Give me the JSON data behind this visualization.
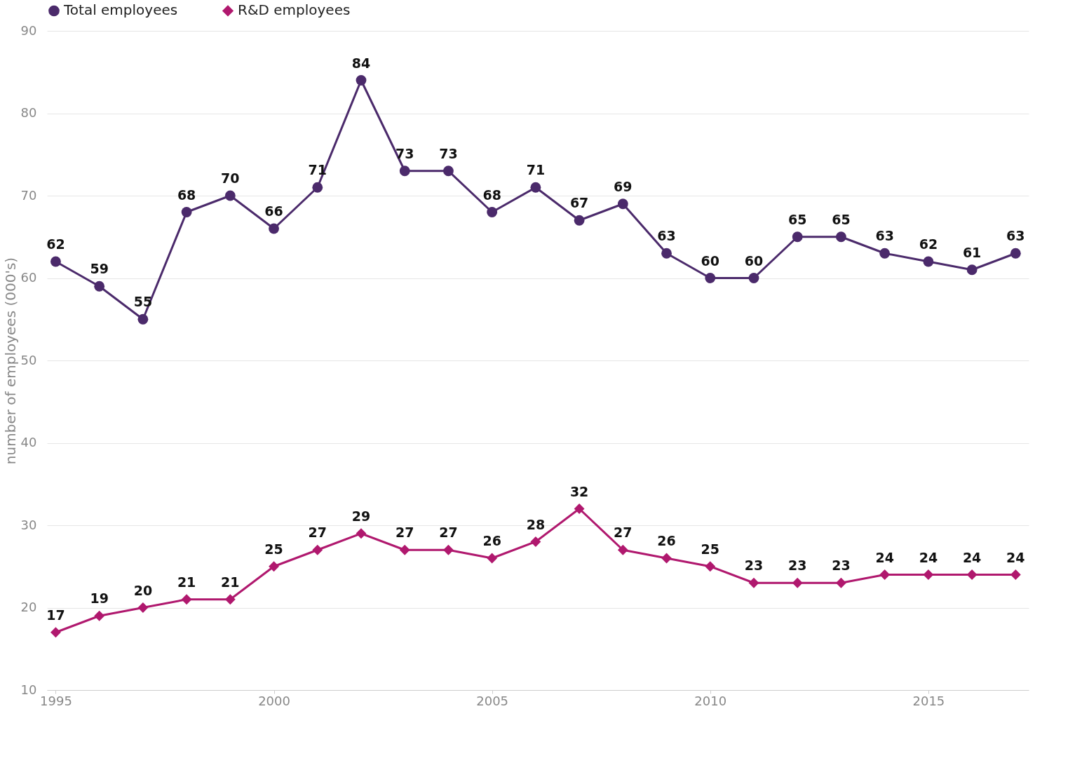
{
  "chart_data": {
    "type": "line",
    "ylabel": "number of employees (000's)",
    "x": [
      1995,
      1996,
      1997,
      1998,
      1999,
      2000,
      2001,
      2002,
      2003,
      2004,
      2005,
      2006,
      2007,
      2008,
      2009,
      2010,
      2011,
      2012,
      2013,
      2014,
      2015,
      2016,
      2017
    ],
    "series": [
      {
        "name": "Total employees",
        "color": "#4b2a6b",
        "marker": "circle",
        "values": [
          62,
          59,
          55,
          68,
          70,
          66,
          71,
          84,
          73,
          73,
          68,
          71,
          67,
          69,
          63,
          60,
          60,
          65,
          65,
          63,
          62,
          61,
          63
        ]
      },
      {
        "name": "R&D employees",
        "color": "#b0186e",
        "marker": "diamond",
        "values": [
          17,
          19,
          20,
          21,
          21,
          25,
          27,
          29,
          27,
          27,
          26,
          28,
          32,
          27,
          26,
          25,
          23,
          23,
          23,
          24,
          24,
          24,
          24
        ]
      }
    ],
    "xlim": [
      1994.8,
      2017.3
    ],
    "xticks": [
      1995,
      2000,
      2005,
      2010,
      2015
    ],
    "ylim": [
      10,
      90
    ],
    "yticks": [
      10,
      20,
      30,
      40,
      50,
      60,
      70,
      80,
      90
    ],
    "grid": "y",
    "legend": "top",
    "data_labels": true,
    "line_style": "solid"
  }
}
